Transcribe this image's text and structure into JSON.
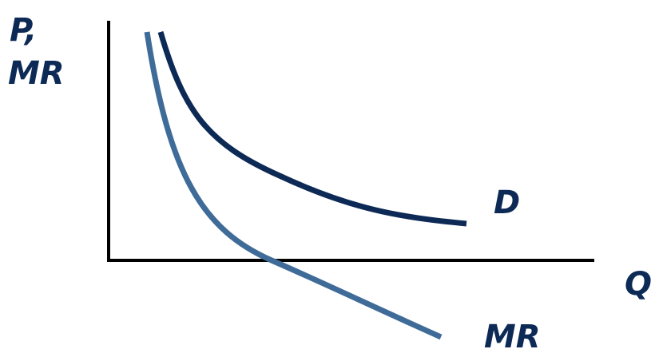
{
  "colors": {
    "axis": "#000000",
    "label": "#0c2a55",
    "demand_curve": "#0c2a55",
    "mr_curve": "#3f6b98"
  },
  "labels": {
    "y_axis_line1": "P,",
    "y_axis_line2": "MR",
    "x_axis": "Q",
    "demand": "D",
    "marginal_revenue": "MR"
  }
}
